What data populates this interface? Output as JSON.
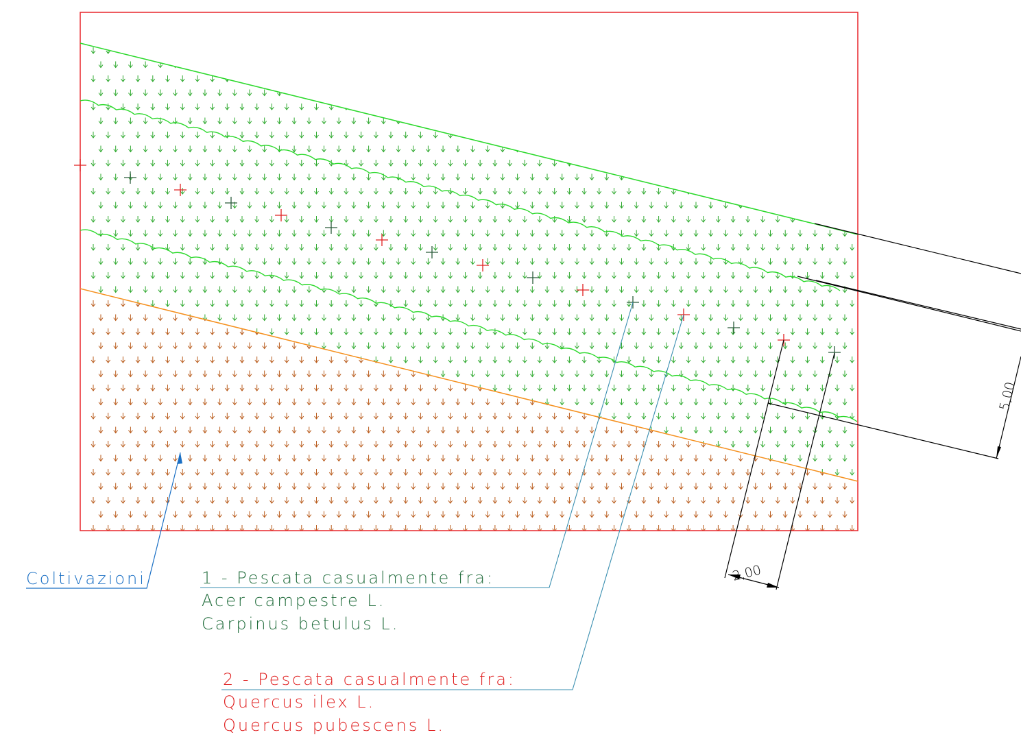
{
  "colors": {
    "frame": "#e8252b",
    "green_line": "#2cd92c",
    "orange_line": "#f5901e",
    "green_symbol": "#2ca82c",
    "brown_symbol": "#b85a1a",
    "blue_leader": "#1a6fc4",
    "teal_leader": "#3a8fb0",
    "dark_green_text": "#1f6b3a",
    "red_text": "#e02020",
    "dim_line": "#000000",
    "cross_dark": "#2a5a3a",
    "cross_red": "#e02020"
  },
  "labels": {
    "coltivazioni": "Coltivazioni",
    "group1": {
      "title": "1 - Pescata casualmente fra:",
      "species": [
        "Acer campestre L.",
        "Carpinus betulus L."
      ]
    },
    "group2": {
      "title": "2 - Pescata casualmente fra:",
      "species": [
        "Quercus ilex L.",
        "Quercus pubescens L."
      ]
    }
  },
  "dimensions": {
    "spacing_along_row": "2,00",
    "band_width": "5,00"
  },
  "icons": {
    "planting_mark": "cross-icon",
    "vegetation_symbol": "arrow-down-icon"
  }
}
